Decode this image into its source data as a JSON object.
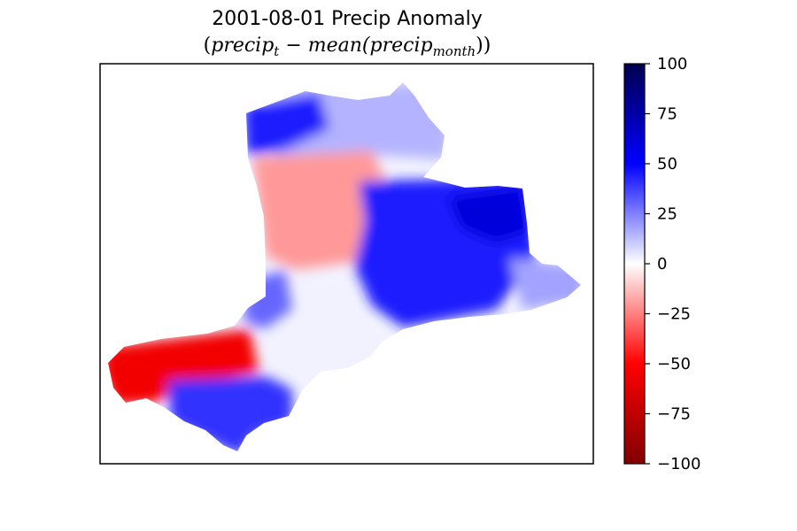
{
  "chart_data": {
    "type": "heatmap",
    "title": "2001-08-01 Precip Anomaly",
    "subtitle_parts": {
      "open": "(",
      "precip1": "precip",
      "sub_t": "t",
      "minus": " − ",
      "mean": "mean(",
      "precip2": "precip",
      "sub_month": "month",
      "close": "))"
    },
    "xlabel": "",
    "ylabel": "",
    "colormap": "seismic_r",
    "vmin": -100,
    "vmax": 100,
    "colorbar_ticks": [
      {
        "value": 100,
        "label": "100"
      },
      {
        "value": 75,
        "label": "75"
      },
      {
        "value": 50,
        "label": "50"
      },
      {
        "value": 25,
        "label": "25"
      },
      {
        "value": 0,
        "label": "0"
      },
      {
        "value": -25,
        "label": "−25"
      },
      {
        "value": -50,
        "label": "−50"
      },
      {
        "value": -75,
        "label": "−75"
      },
      {
        "value": -100,
        "label": "−100"
      }
    ],
    "colors": {
      "low_dark": "#800000",
      "low": "#ff0000",
      "mid": "#ffffff",
      "high": "#0000ff",
      "high_dark": "#00004d"
    },
    "regions": [
      {
        "name": "north-tip-strong-positive",
        "anomaly": 45
      },
      {
        "name": "north-upper-weak-positive",
        "anomaly": 15
      },
      {
        "name": "north-central-negative",
        "anomaly": -20
      },
      {
        "name": "east-strong-positive",
        "anomaly": 45
      },
      {
        "name": "east-peak-positive",
        "anomaly": 60
      },
      {
        "name": "east-tail-weak-positive",
        "anomaly": 18
      },
      {
        "name": "west-edge-positive",
        "anomaly": 30
      },
      {
        "name": "southwest-strong-negative",
        "anomaly": -55
      },
      {
        "name": "south-positive",
        "anomaly": 40
      }
    ]
  }
}
